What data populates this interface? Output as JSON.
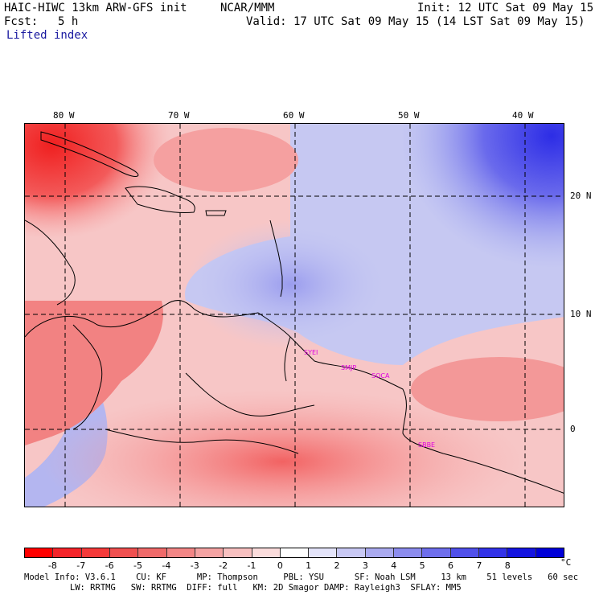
{
  "header": {
    "model": "HAIC-HIWC 13km ARW-GFS init",
    "org": "NCAR/MMM",
    "init": "Init: 12 UTC Sat 09 May 15",
    "fcst_label": "Fcst:",
    "fcst_value": "5 h",
    "valid": "Valid: 17 UTC Sat 09 May 15 (14 LST Sat 09 May 15)",
    "field": "Lifted index"
  },
  "map": {
    "lon_labels": [
      "80 W",
      "70 W",
      "60 W",
      "50 W",
      "40 W"
    ],
    "lat_labels": [
      "20 N",
      "10 N",
      "0"
    ],
    "stations": [
      "SYEI",
      "SMJP",
      "SOCA",
      "SBBE"
    ],
    "station_color": "#e000e0"
  },
  "colorbar": {
    "ticks": [
      "-8",
      "-7",
      "-6",
      "-5",
      "-4",
      "-3",
      "-2",
      "-1",
      "0",
      "1",
      "2",
      "3",
      "4",
      "5",
      "6",
      "7",
      "8"
    ],
    "unit": "°C",
    "colors": [
      "#ff0000",
      "#f4242a",
      "#f53a3a",
      "#f05050",
      "#f06a6a",
      "#f38686",
      "#f5a3a3",
      "#f8c0c0",
      "#fbdcdc",
      "#ffffff",
      "#e4e4fa",
      "#c8c8f4",
      "#aaaaf0",
      "#8c8cee",
      "#6e6eec",
      "#5050ea",
      "#3232e8",
      "#1414e0",
      "#0000d8"
    ]
  },
  "footer": {
    "line1": "Model Info: V3.6.1    CU: KF      MP: Thompson     PBL: YSU      SF: Noah LSM     13 km    51 levels   60 sec",
    "line2": "         LW: RRTMG   SW: RRTMG  DIFF: full   KM: 2D Smagor DAMP: Rayleigh3  SFLAY: MM5"
  }
}
